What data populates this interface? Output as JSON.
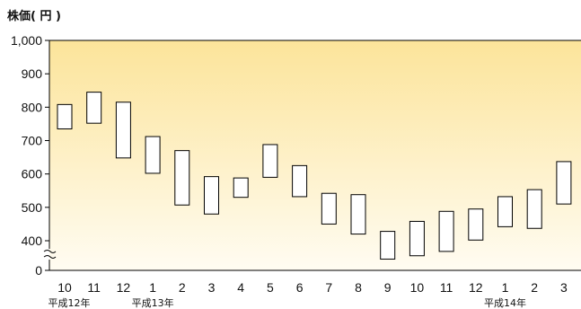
{
  "chart_data": {
    "type": "candlestick",
    "title": "",
    "ylabel": "株価( 円 )",
    "xlabel": "",
    "ylim": [
      400,
      1000
    ],
    "axis_break": true,
    "y_ticks": [
      "1,000",
      "900",
      "800",
      "700",
      "600",
      "500",
      "400",
      "0"
    ],
    "categories": [
      "10",
      "11",
      "12",
      "1",
      "2",
      "3",
      "4",
      "5",
      "6",
      "7",
      "8",
      "9",
      "10",
      "11",
      "12",
      "1",
      "2",
      "3"
    ],
    "era_labels": [
      {
        "text": "平成12年",
        "category_index": 0
      },
      {
        "text": "平成13年",
        "category_index": 3
      },
      {
        "text": "平成14年",
        "category_index": 15
      }
    ],
    "series": [
      {
        "low": [
          735,
          752,
          648,
          602,
          507,
          480,
          530,
          590,
          532,
          450,
          420,
          345,
          355,
          368,
          402,
          442,
          437,
          510
        ],
        "high": [
          808,
          845,
          815,
          712,
          670,
          592,
          588,
          688,
          625,
          542,
          538,
          428,
          458,
          488,
          495,
          532,
          553,
          637
        ]
      }
    ],
    "colors": {
      "background_top": "#fce49a",
      "background_bottom": "#fffcf2",
      "box_fill": "#ffffff",
      "stroke": "#000000"
    }
  }
}
